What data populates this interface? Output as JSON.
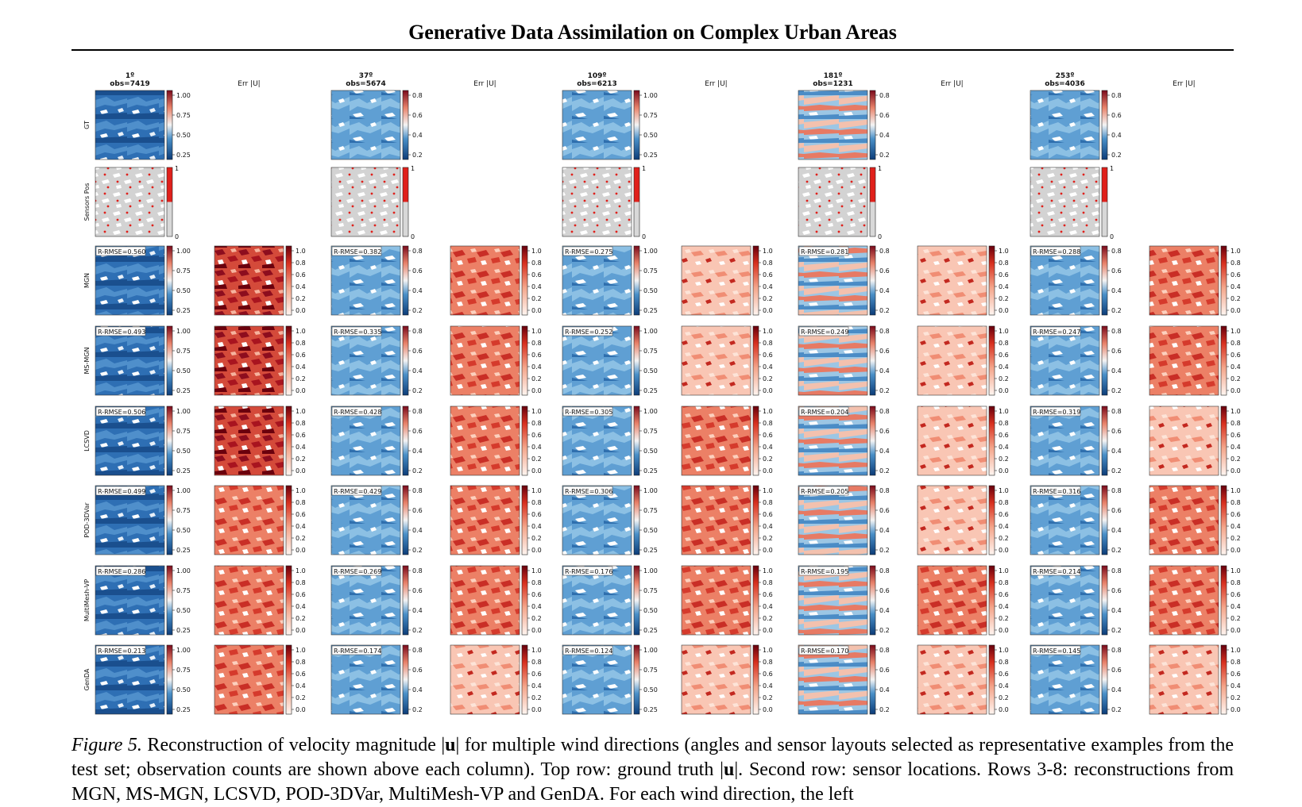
{
  "header": {
    "title": "Generative Data Assimilation on Complex Urban Areas"
  },
  "figure": {
    "column_groups": [
      {
        "angle": "1º",
        "obs": "obs=7419",
        "gt_ticks": [
          "1.00",
          "0.75",
          "0.50",
          "0.25"
        ],
        "rmse": [
          "R-RMSE=0.560",
          "R-RMSE=0.493",
          "R-RMSE=0.506",
          "R-RMSE=0.499",
          "R-RMSE=0.286",
          "R-RMSE=0.213"
        ]
      },
      {
        "angle": "37º",
        "obs": "obs=5674",
        "gt_ticks": [
          "0.8",
          "0.6",
          "0.4",
          "0.2"
        ],
        "rmse": [
          "R-RMSE=0.382",
          "R-RMSE=0.335",
          "R-RMSE=0.428",
          "R-RMSE=0.429",
          "R-RMSE=0.269",
          "R-RMSE=0.174"
        ]
      },
      {
        "angle": "109º",
        "obs": "obs=6213",
        "gt_ticks": [
          "1.00",
          "0.75",
          "0.50",
          "0.25"
        ],
        "rmse": [
          "R-RMSE=0.275",
          "R-RMSE=0.252",
          "R-RMSE=0.305",
          "R-RMSE=0.306",
          "R-RMSE=0.176",
          "R-RMSE=0.124"
        ]
      },
      {
        "angle": "181º",
        "obs": "obs=1231",
        "gt_ticks": [
          "0.8",
          "0.6",
          "0.4",
          "0.2"
        ],
        "rmse": [
          "R-RMSE=0.281",
          "R-RMSE=0.249",
          "R-RMSE=0.204",
          "R-RMSE=0.205",
          "R-RMSE=0.195",
          "R-RMSE=0.170"
        ]
      },
      {
        "angle": "253º",
        "obs": "obs=4036",
        "gt_ticks": [
          "0.8",
          "0.6",
          "0.4",
          "0.2"
        ],
        "rmse": [
          "R-RMSE=0.288",
          "R-RMSE=0.247",
          "R-RMSE=0.319",
          "R-RMSE=0.316",
          "R-RMSE=0.214",
          "R-RMSE=0.145"
        ]
      }
    ],
    "err_title": "Err |U|",
    "row_labels": [
      "GT",
      "Sensors Pos",
      "MGN",
      "MS-MGN",
      "LCSVD",
      "POD-3DVar",
      "MultiMesh-VP",
      "GenDA"
    ],
    "err_ticks": [
      "1.0",
      "0.8",
      "0.6",
      "0.4",
      "0.2",
      "0.0"
    ],
    "sensor_ticks": [
      "1",
      "0"
    ],
    "colors": {
      "blue_map": "#1f5fa8",
      "red_map": "#b2182b",
      "sensor_bg": "#d3d3d3",
      "sensor_dot": "#e0201b"
    }
  },
  "caption": {
    "label": "Figure 5.",
    "text_1": " Reconstruction of velocity magnitude |",
    "u1": "u",
    "text_2": "| for multiple wind directions (angles and sensor layouts selected as representative examples from the test set; observation counts are shown above each column). Top row: ground truth |",
    "u2": "u",
    "text_3": "|. Second row: sensor locations. Rows 3-8: reconstructions from MGN, MS-MGN, LCSVD, POD-3DVar, MultiMesh-VP and GenDA. For each wind direction, the left"
  }
}
